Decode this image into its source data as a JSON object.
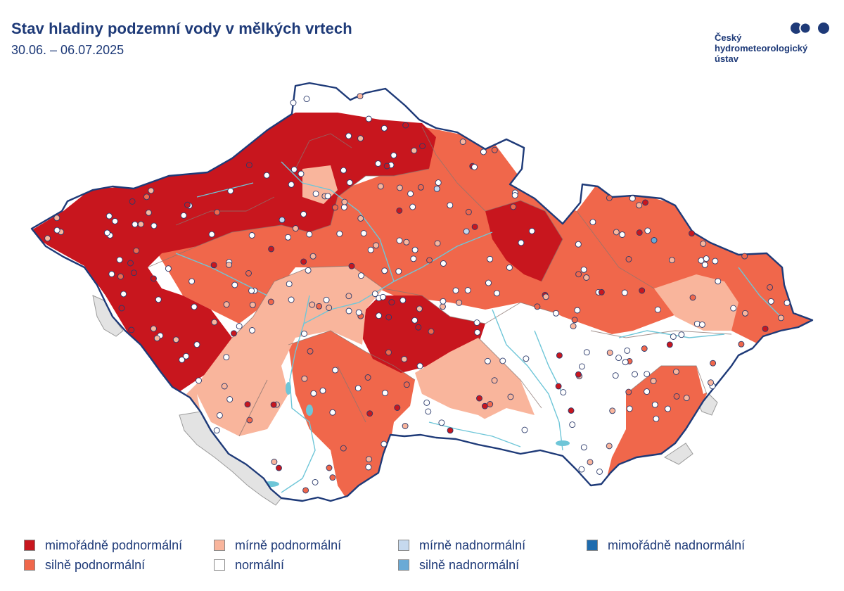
{
  "header": {
    "title": "Stav hladiny podzemní vody v mělkých vrtech",
    "date_range": "30.06. – 06.07.2025"
  },
  "logo": {
    "lines": [
      "Český",
      "hydrometeorologický",
      "ústav"
    ],
    "icon": "chmi-logo-dots-icon"
  },
  "colors": {
    "extreme_below": "#c8161e",
    "strong_below": "#f0674b",
    "mild_below": "#f9b59c",
    "normal": "#ffffff",
    "mild_above": "#c6d9ee",
    "strong_above": "#6aaad6",
    "extreme_above": "#1f6cae",
    "neighbour_land": "#e3e3e3",
    "border": "#1e3a78",
    "river": "#6ec6d8"
  },
  "legend": {
    "items": [
      {
        "key": "extreme_below",
        "label": "mimořádně podnormální",
        "color": "#c8161e"
      },
      {
        "key": "strong_below",
        "label": "silně podnormální",
        "color": "#f0674b"
      },
      {
        "key": "mild_below",
        "label": "mírně podnormální",
        "color": "#f9b59c"
      },
      {
        "key": "normal",
        "label": "normální",
        "color": "#ffffff"
      },
      {
        "key": "mild_above",
        "label": "mírně nadnormální",
        "color": "#c6d9ee"
      },
      {
        "key": "strong_above",
        "label": "silně nadnormální",
        "color": "#6aaad6"
      },
      {
        "key": "extreme_above",
        "label": "mimořádně nadnormální",
        "color": "#1f6cae"
      }
    ]
  }
}
